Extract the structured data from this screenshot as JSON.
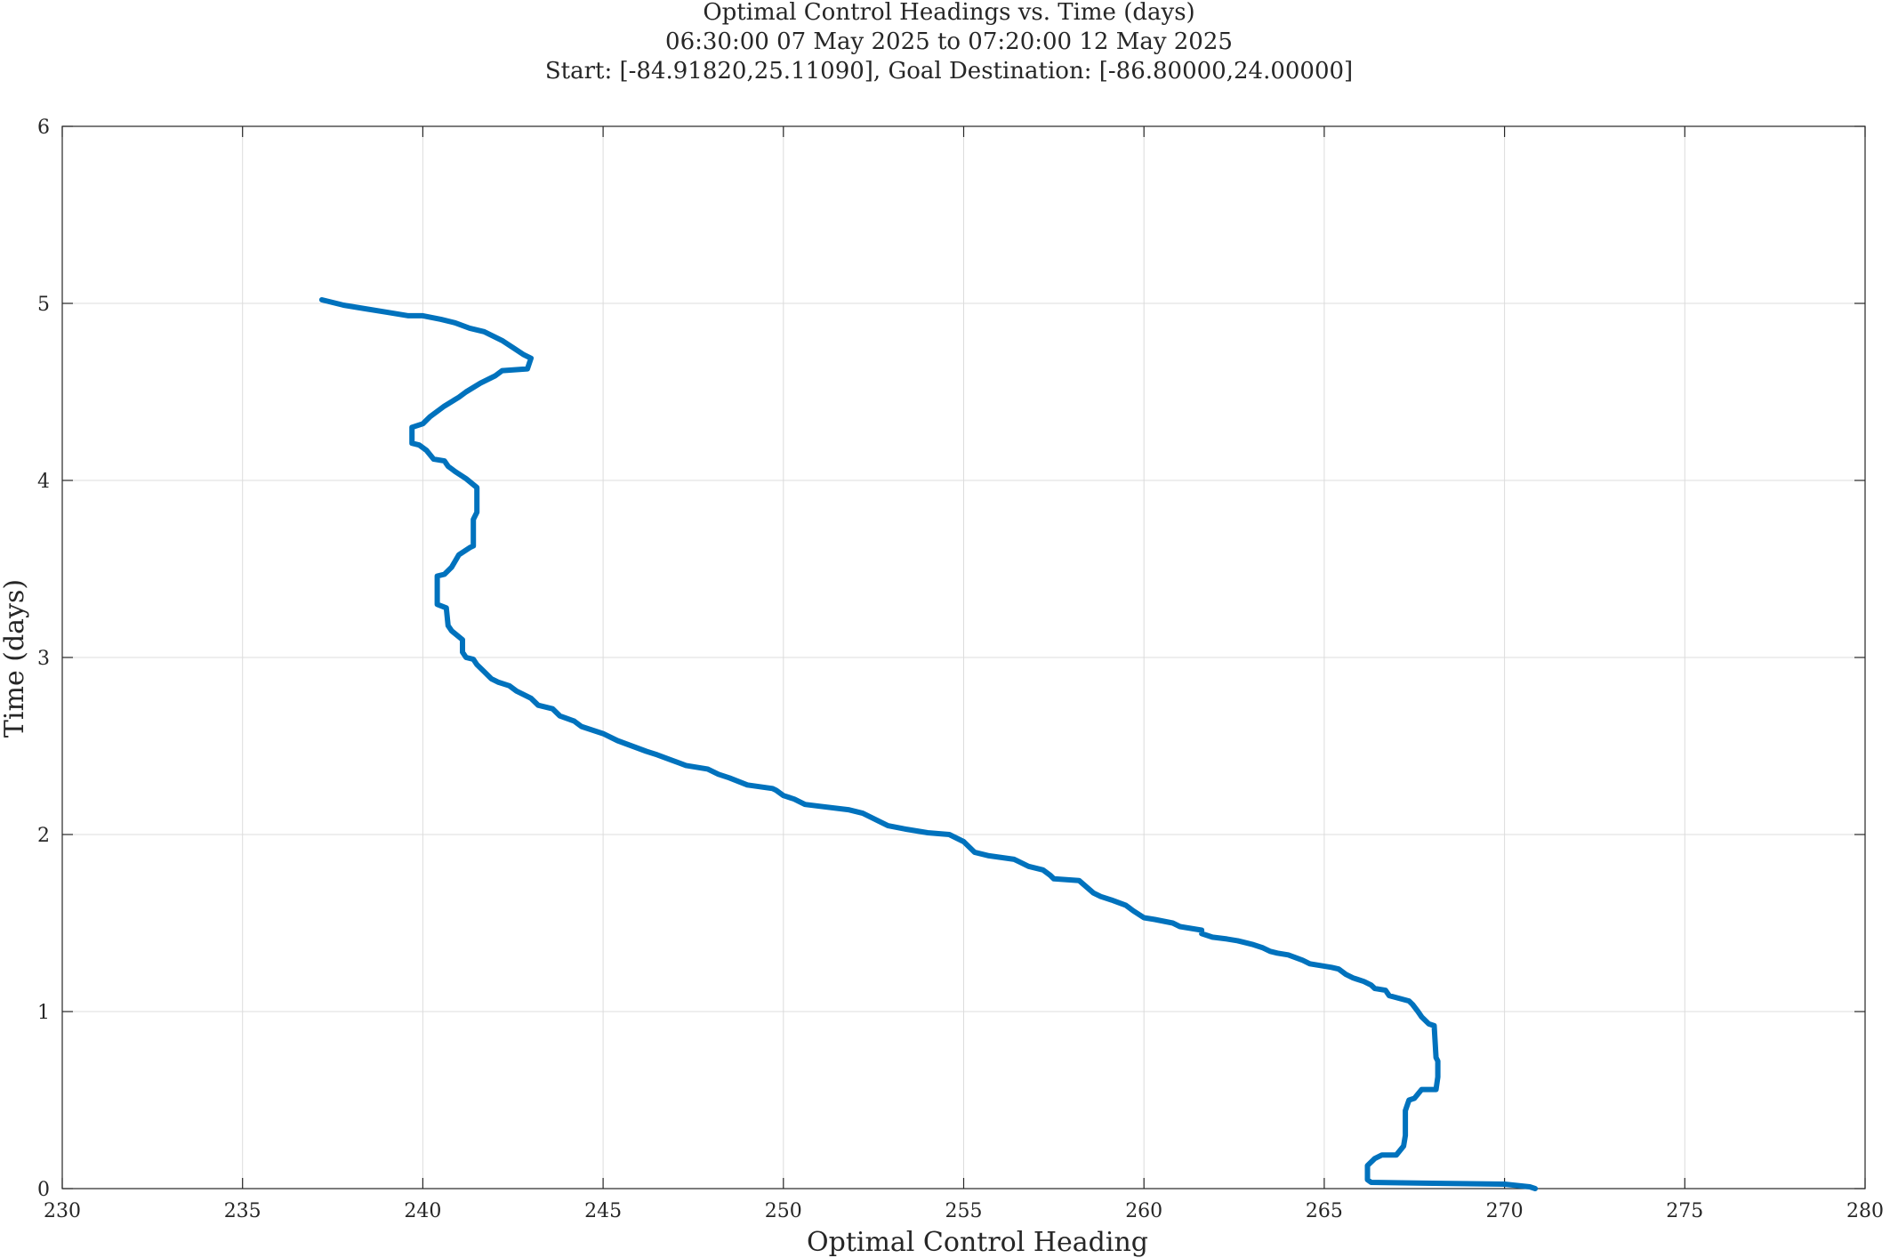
{
  "chart_data": {
    "type": "line",
    "title": [
      "Optimal Control Headings vs. Time (days)",
      "06:30:00 07 May 2025 to 07:20:00 12 May 2025",
      "Start: [-84.91820,25.11090], Goal Destination: [-86.80000,24.00000]"
    ],
    "xlabel": "Optimal Control Heading",
    "ylabel": "Time (days)",
    "xlim": [
      230,
      280
    ],
    "ylim": [
      0,
      6
    ],
    "xticks": [
      230,
      235,
      240,
      245,
      250,
      255,
      260,
      265,
      270,
      275,
      280
    ],
    "yticks": [
      0,
      1,
      2,
      3,
      4,
      5,
      6
    ],
    "grid": true,
    "series_color": "#0072BD",
    "series": [
      {
        "points": [
          [
            270.85,
            0.0
          ],
          [
            270.7,
            0.01
          ],
          [
            270.0,
            0.025
          ],
          [
            268.0,
            0.03
          ],
          [
            266.3,
            0.035
          ],
          [
            266.2,
            0.05
          ],
          [
            266.2,
            0.13
          ],
          [
            266.4,
            0.17
          ],
          [
            266.6,
            0.19
          ],
          [
            267.0,
            0.19
          ],
          [
            267.2,
            0.24
          ],
          [
            267.25,
            0.3
          ],
          [
            267.25,
            0.44
          ],
          [
            267.35,
            0.5
          ],
          [
            267.5,
            0.51
          ],
          [
            267.7,
            0.56
          ],
          [
            268.1,
            0.56
          ],
          [
            268.15,
            0.63
          ],
          [
            268.15,
            0.72
          ],
          [
            268.1,
            0.74
          ],
          [
            268.05,
            0.92
          ],
          [
            267.9,
            0.93
          ],
          [
            267.7,
            0.97
          ],
          [
            267.6,
            1.0
          ],
          [
            267.45,
            1.04
          ],
          [
            267.35,
            1.06
          ],
          [
            266.8,
            1.09
          ],
          [
            266.7,
            1.12
          ],
          [
            266.4,
            1.13
          ],
          [
            266.3,
            1.15
          ],
          [
            266.1,
            1.17
          ],
          [
            265.8,
            1.19
          ],
          [
            265.6,
            1.21
          ],
          [
            265.4,
            1.24
          ],
          [
            265.2,
            1.25
          ],
          [
            264.6,
            1.27
          ],
          [
            264.4,
            1.29
          ],
          [
            264.0,
            1.32
          ],
          [
            263.7,
            1.33
          ],
          [
            263.5,
            1.34
          ],
          [
            263.3,
            1.36
          ],
          [
            263.0,
            1.38
          ],
          [
            262.6,
            1.4
          ],
          [
            262.3,
            1.41
          ],
          [
            261.9,
            1.42
          ],
          [
            261.6,
            1.44
          ],
          [
            261.6,
            1.46
          ],
          [
            261.0,
            1.48
          ],
          [
            260.8,
            1.5
          ],
          [
            260.3,
            1.52
          ],
          [
            260.0,
            1.53
          ],
          [
            259.7,
            1.57
          ],
          [
            259.5,
            1.6
          ],
          [
            259.1,
            1.63
          ],
          [
            258.8,
            1.65
          ],
          [
            258.6,
            1.67
          ],
          [
            258.2,
            1.74
          ],
          [
            257.5,
            1.75
          ],
          [
            257.4,
            1.77
          ],
          [
            257.2,
            1.8
          ],
          [
            256.8,
            1.82
          ],
          [
            256.4,
            1.86
          ],
          [
            255.7,
            1.88
          ],
          [
            255.3,
            1.9
          ],
          [
            255.2,
            1.92
          ],
          [
            255.0,
            1.96
          ],
          [
            254.6,
            2.0
          ],
          [
            254.0,
            2.01
          ],
          [
            253.4,
            2.03
          ],
          [
            252.9,
            2.05
          ],
          [
            252.6,
            2.08
          ],
          [
            252.2,
            2.12
          ],
          [
            251.8,
            2.14
          ],
          [
            251.0,
            2.16
          ],
          [
            250.6,
            2.17
          ],
          [
            250.3,
            2.2
          ],
          [
            250.0,
            2.22
          ],
          [
            249.8,
            2.25
          ],
          [
            249.7,
            2.26
          ],
          [
            249.0,
            2.28
          ],
          [
            248.5,
            2.32
          ],
          [
            248.2,
            2.34
          ],
          [
            247.9,
            2.37
          ],
          [
            247.3,
            2.39
          ],
          [
            246.9,
            2.42
          ],
          [
            246.5,
            2.45
          ],
          [
            246.2,
            2.47
          ],
          [
            245.8,
            2.5
          ],
          [
            245.4,
            2.53
          ],
          [
            245.0,
            2.57
          ],
          [
            244.4,
            2.61
          ],
          [
            244.2,
            2.64
          ],
          [
            243.8,
            2.67
          ],
          [
            243.6,
            2.71
          ],
          [
            243.2,
            2.73
          ],
          [
            243.0,
            2.77
          ],
          [
            242.7,
            2.8
          ],
          [
            242.6,
            2.81
          ],
          [
            242.4,
            2.84
          ],
          [
            242.1,
            2.86
          ],
          [
            241.9,
            2.88
          ],
          [
            241.7,
            2.92
          ],
          [
            241.5,
            2.96
          ],
          [
            241.4,
            2.99
          ],
          [
            241.2,
            3.0
          ],
          [
            241.1,
            3.03
          ],
          [
            241.1,
            3.1
          ],
          [
            240.8,
            3.15
          ],
          [
            240.7,
            3.18
          ],
          [
            240.65,
            3.28
          ],
          [
            240.4,
            3.3
          ],
          [
            240.4,
            3.38
          ],
          [
            240.4,
            3.46
          ],
          [
            240.6,
            3.47
          ],
          [
            240.8,
            3.51
          ],
          [
            241.0,
            3.58
          ],
          [
            241.3,
            3.62
          ],
          [
            241.4,
            3.63
          ],
          [
            241.4,
            3.78
          ],
          [
            241.5,
            3.82
          ],
          [
            241.5,
            3.96
          ],
          [
            241.2,
            4.01
          ],
          [
            240.9,
            4.05
          ],
          [
            240.7,
            4.08
          ],
          [
            240.6,
            4.11
          ],
          [
            240.3,
            4.12
          ],
          [
            240.1,
            4.17
          ],
          [
            239.9,
            4.2
          ],
          [
            239.7,
            4.21
          ],
          [
            239.7,
            4.3
          ],
          [
            240.0,
            4.32
          ],
          [
            240.2,
            4.36
          ],
          [
            240.6,
            4.42
          ],
          [
            241.0,
            4.47
          ],
          [
            241.2,
            4.5
          ],
          [
            241.6,
            4.55
          ],
          [
            242.0,
            4.59
          ],
          [
            242.2,
            4.62
          ],
          [
            242.9,
            4.63
          ],
          [
            243.0,
            4.69
          ],
          [
            242.8,
            4.71
          ],
          [
            242.5,
            4.75
          ],
          [
            242.2,
            4.79
          ],
          [
            241.7,
            4.84
          ],
          [
            241.3,
            4.86
          ],
          [
            240.9,
            4.89
          ],
          [
            240.5,
            4.91
          ],
          [
            240.0,
            4.93
          ],
          [
            239.6,
            4.93
          ],
          [
            239.0,
            4.95
          ],
          [
            238.4,
            4.97
          ],
          [
            237.8,
            4.99
          ],
          [
            237.2,
            5.02
          ]
        ]
      }
    ]
  }
}
